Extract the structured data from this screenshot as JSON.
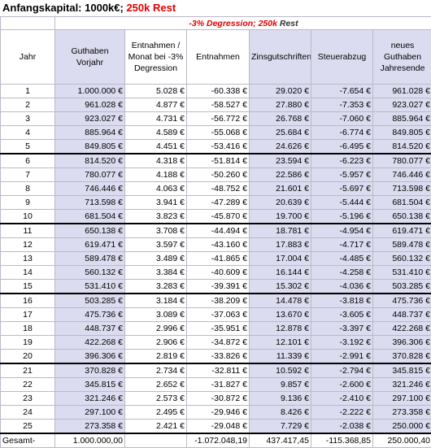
{
  "title": {
    "prefix": "Anfangskapital: 1000k€; ",
    "highlight": "250k Rest"
  },
  "subtitle": {
    "part1": "-3% Degression; ",
    "part2": "250k",
    "part3": " Rest"
  },
  "columns": [
    "Jahr",
    "Guthaben Vorjahr",
    "Entnahmen / Monat bei -3% Degression",
    "Entnahmen",
    "Zinsgutschriften",
    "Steuerabzug",
    "neues Guthaben Jahresende"
  ],
  "rows": [
    [
      "1",
      "1.000.000 €",
      "5.028 €",
      "-60.338 €",
      "29.020 €",
      "-7.654 €",
      "961.028 €"
    ],
    [
      "2",
      "961.028 €",
      "4.877 €",
      "-58.527 €",
      "27.880 €",
      "-7.353 €",
      "923.027 €"
    ],
    [
      "3",
      "923.027 €",
      "4.731 €",
      "-56.772 €",
      "26.768 €",
      "-7.060 €",
      "885.964 €"
    ],
    [
      "4",
      "885.964 €",
      "4.589 €",
      "-55.068 €",
      "25.684 €",
      "-6.774 €",
      "849.805 €"
    ],
    [
      "5",
      "849.805 €",
      "4.451 €",
      "-53.416 €",
      "24.626 €",
      "-6.495 €",
      "814.520 €"
    ],
    [
      "6",
      "814.520 €",
      "4.318 €",
      "-51.814 €",
      "23.594 €",
      "-6.223 €",
      "780.077 €"
    ],
    [
      "7",
      "780.077 €",
      "4.188 €",
      "-50.260 €",
      "22.586 €",
      "-5.957 €",
      "746.446 €"
    ],
    [
      "8",
      "746.446 €",
      "4.063 €",
      "-48.752 €",
      "21.601 €",
      "-5.697 €",
      "713.598 €"
    ],
    [
      "9",
      "713.598 €",
      "3.941 €",
      "-47.289 €",
      "20.639 €",
      "-5.444 €",
      "681.504 €"
    ],
    [
      "10",
      "681.504 €",
      "3.823 €",
      "-45.870 €",
      "19.700 €",
      "-5.196 €",
      "650.138 €"
    ],
    [
      "11",
      "650.138 €",
      "3.708 €",
      "-44.494 €",
      "18.781 €",
      "-4.954 €",
      "619.471 €"
    ],
    [
      "12",
      "619.471 €",
      "3.597 €",
      "-43.160 €",
      "17.883 €",
      "-4.717 €",
      "589.478 €"
    ],
    [
      "13",
      "589.478 €",
      "3.489 €",
      "-41.865 €",
      "17.004 €",
      "-4.485 €",
      "560.132 €"
    ],
    [
      "14",
      "560.132 €",
      "3.384 €",
      "-40.609 €",
      "16.144 €",
      "-4.258 €",
      "531.410 €"
    ],
    [
      "15",
      "531.410 €",
      "3.283 €",
      "-39.391 €",
      "15.302 €",
      "-4.036 €",
      "503.285 €"
    ],
    [
      "16",
      "503.285 €",
      "3.184 €",
      "-38.209 €",
      "14.478 €",
      "-3.818 €",
      "475.736 €"
    ],
    [
      "17",
      "475.736 €",
      "3.089 €",
      "-37.063 €",
      "13.670 €",
      "-3.605 €",
      "448.737 €"
    ],
    [
      "18",
      "448.737 €",
      "2.996 €",
      "-35.951 €",
      "12.878 €",
      "-3.397 €",
      "422.268 €"
    ],
    [
      "19",
      "422.268 €",
      "2.906 €",
      "-34.872 €",
      "12.101 €",
      "-3.192 €",
      "396.306 €"
    ],
    [
      "20",
      "396.306 €",
      "2.819 €",
      "-33.826 €",
      "11.339 €",
      "-2.991 €",
      "370.828 €"
    ],
    [
      "21",
      "370.828 €",
      "2.734 €",
      "-32.811 €",
      "10.592 €",
      "-2.794 €",
      "345.815 €"
    ],
    [
      "22",
      "345.815 €",
      "2.652 €",
      "-31.827 €",
      "9.857 €",
      "-2.600 €",
      "321.246 €"
    ],
    [
      "23",
      "321.246 €",
      "2.573 €",
      "-30.872 €",
      "9.136 €",
      "-2.410 €",
      "297.100 €"
    ],
    [
      "24",
      "297.100 €",
      "2.495 €",
      "-29.946 €",
      "8.426 €",
      "-2.222 €",
      "273.358 €"
    ],
    [
      "25",
      "273.358 €",
      "2.421 €",
      "-29.048 €",
      "7.729 €",
      "-2.038 €",
      "250.000 €"
    ]
  ],
  "total": [
    "Gesamt-",
    "1.000.000,00",
    "",
    "-1.072.048,19",
    "437.417,45",
    "-115.368,85",
    "250.000,40"
  ]
}
